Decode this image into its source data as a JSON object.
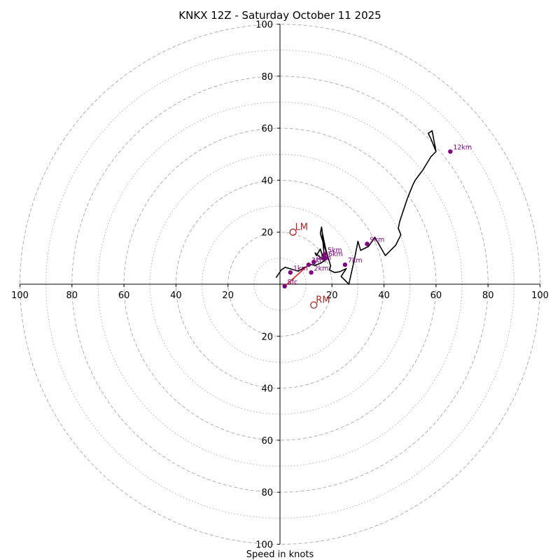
{
  "chart_data": {
    "type": "hodograph",
    "title": "KNKX 12Z - Saturday October 11 2025",
    "xlabel": "Speed in knots",
    "range": [
      -100,
      100
    ],
    "major_rings": [
      20,
      40,
      60,
      80,
      100
    ],
    "minor_rings": [
      10,
      30,
      50,
      70,
      90
    ],
    "tick_labels": {
      "x_left": [
        "100",
        "80",
        "60",
        "40",
        "20"
      ],
      "x_right": [
        "20",
        "40",
        "60",
        "80",
        "100"
      ],
      "y_top": [
        "100",
        "80",
        "60",
        "40",
        "20"
      ],
      "y_bottom": [
        "20",
        "40",
        "60",
        "80",
        "100"
      ]
    },
    "trace": [
      [
        -1.5,
        2.5
      ],
      [
        0.5,
        5.5
      ],
      [
        2,
        6.5
      ],
      [
        7,
        5
      ],
      [
        9.5,
        6.5
      ],
      [
        12,
        7.5
      ],
      [
        13.5,
        7.3
      ],
      [
        15.5,
        8
      ],
      [
        17,
        9
      ],
      [
        16,
        12
      ],
      [
        15.5,
        13.5
      ],
      [
        14,
        11
      ],
      [
        13.5,
        12
      ],
      [
        16.5,
        9.5
      ],
      [
        17,
        10.5
      ],
      [
        16.2,
        20
      ],
      [
        18,
        11.5
      ],
      [
        15.5,
        19.5
      ],
      [
        16,
        22
      ],
      [
        16.8,
        16
      ],
      [
        19.5,
        7
      ],
      [
        19,
        5.5
      ],
      [
        21,
        4.5
      ],
      [
        23,
        4.8
      ],
      [
        25.5,
        6
      ],
      [
        23.5,
        3
      ],
      [
        26.5,
        0
      ],
      [
        28.7,
        10
      ],
      [
        30,
        16.5
      ],
      [
        31,
        13
      ],
      [
        34,
        14.5
      ],
      [
        36.5,
        18
      ],
      [
        40.5,
        11
      ],
      [
        44.5,
        15
      ],
      [
        46.5,
        19
      ],
      [
        45.5,
        21.5
      ],
      [
        46,
        24
      ],
      [
        49,
        33
      ],
      [
        51,
        38
      ],
      [
        52,
        40
      ],
      [
        55,
        44
      ],
      [
        58,
        49
      ],
      [
        60,
        51
      ],
      [
        58.5,
        59
      ],
      [
        57,
        58
      ],
      [
        58,
        56
      ],
      [
        60,
        51
      ]
    ],
    "hgt_markers": [
      {
        "label": "Sfc",
        "u": 1.8,
        "v": -0.8
      },
      {
        "label": "1km",
        "u": 4,
        "v": 4.5
      },
      {
        "label": "2km",
        "u": 12,
        "v": 4.5
      },
      {
        "label": "3km",
        "u": 11,
        "v": 7.5
      },
      {
        "label": "4km",
        "u": 13,
        "v": 8.5
      },
      {
        "label": "5km",
        "u": 17.2,
        "v": 11.5
      },
      {
        "label": "6km",
        "u": 17.5,
        "v": 10
      },
      {
        "label": "7km",
        "u": 25,
        "v": 7.5
      },
      {
        "label": "9km",
        "u": 33.5,
        "v": 15.5
      },
      {
        "label": "12km",
        "u": 65.5,
        "v": 51
      }
    ],
    "bunkers": {
      "LM": {
        "label": "LM",
        "u": 5,
        "v": 20
      },
      "RM": {
        "label": "RM",
        "u": 13,
        "v": -8
      }
    },
    "shear_vector": {
      "from": [
        1.8,
        -0.8
      ],
      "to": [
        11,
        7.5
      ]
    },
    "colors": {
      "trace": "#000000",
      "markers": "#800080",
      "motion": "#b22222",
      "shear": "#dd2222",
      "grid": "#b0b0b0"
    }
  }
}
